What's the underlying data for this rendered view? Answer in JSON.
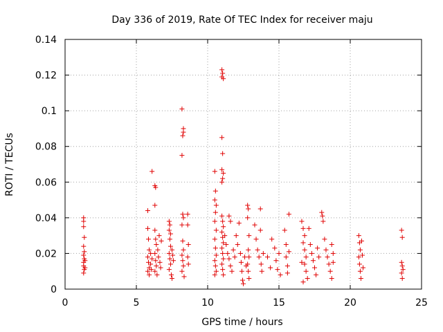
{
  "chart_data": {
    "type": "scatter",
    "title": "Day 336 of 2019, Rate Of TEC Index for receiver maju",
    "xlabel": "GPS time / hours",
    "ylabel": "ROTI / TECUs",
    "xlim": [
      0,
      25
    ],
    "ylim": [
      0,
      0.14
    ],
    "xticks": [
      0,
      5,
      10,
      15,
      20,
      25
    ],
    "yticks": [
      0,
      0.02,
      0.04,
      0.06,
      0.08,
      0.1,
      0.12,
      0.14
    ],
    "xtick_labels": [
      "0",
      "5",
      "10",
      "15",
      "20",
      "25"
    ],
    "ytick_labels": [
      "0",
      "0.02",
      "0.04",
      "0.06",
      "0.08",
      "0.1",
      "0.12",
      "0.14"
    ],
    "grid": true,
    "marker": "+",
    "color": "#e00000",
    "series": [
      {
        "name": "ROTI",
        "points": [
          [
            1.3,
            0.04
          ],
          [
            1.3,
            0.038
          ],
          [
            1.3,
            0.035
          ],
          [
            1.35,
            0.029
          ],
          [
            1.3,
            0.024
          ],
          [
            1.3,
            0.019
          ],
          [
            1.35,
            0.017
          ],
          [
            1.3,
            0.015
          ],
          [
            1.3,
            0.013
          ],
          [
            1.35,
            0.011
          ],
          [
            1.3,
            0.009
          ],
          [
            1.4,
            0.016
          ],
          [
            1.4,
            0.012
          ],
          [
            1.35,
            0.021
          ],
          [
            5.8,
            0.044
          ],
          [
            5.8,
            0.034
          ],
          [
            5.85,
            0.028
          ],
          [
            5.9,
            0.022
          ],
          [
            5.8,
            0.018
          ],
          [
            5.85,
            0.015
          ],
          [
            5.9,
            0.012
          ],
          [
            5.8,
            0.01
          ],
          [
            5.9,
            0.008
          ],
          [
            6.0,
            0.02
          ],
          [
            6.0,
            0.014
          ],
          [
            6.05,
            0.011
          ],
          [
            6.1,
            0.066
          ],
          [
            6.1,
            0.017
          ],
          [
            6.3,
            0.058
          ],
          [
            6.35,
            0.057
          ],
          [
            6.3,
            0.047
          ],
          [
            6.3,
            0.033
          ],
          [
            6.35,
            0.028
          ],
          [
            6.4,
            0.025
          ],
          [
            6.3,
            0.02
          ],
          [
            6.35,
            0.016
          ],
          [
            6.4,
            0.013
          ],
          [
            6.3,
            0.01
          ],
          [
            6.45,
            0.008
          ],
          [
            6.5,
            0.022
          ],
          [
            6.55,
            0.018
          ],
          [
            6.6,
            0.03
          ],
          [
            6.65,
            0.015
          ],
          [
            6.7,
            0.012
          ],
          [
            6.75,
            0.027
          ],
          [
            7.3,
            0.038
          ],
          [
            7.35,
            0.036
          ],
          [
            7.3,
            0.033
          ],
          [
            7.4,
            0.031
          ],
          [
            7.35,
            0.028
          ],
          [
            7.4,
            0.024
          ],
          [
            7.3,
            0.02
          ],
          [
            7.35,
            0.017
          ],
          [
            7.4,
            0.014
          ],
          [
            7.3,
            0.011
          ],
          [
            7.45,
            0.008
          ],
          [
            7.5,
            0.006
          ],
          [
            7.5,
            0.022
          ],
          [
            7.55,
            0.019
          ],
          [
            7.6,
            0.016
          ],
          [
            8.2,
            0.101
          ],
          [
            8.3,
            0.09
          ],
          [
            8.3,
            0.088
          ],
          [
            8.25,
            0.086
          ],
          [
            8.2,
            0.075
          ],
          [
            8.25,
            0.042
          ],
          [
            8.3,
            0.04
          ],
          [
            8.2,
            0.036
          ],
          [
            8.25,
            0.027
          ],
          [
            8.3,
            0.022
          ],
          [
            8.2,
            0.019
          ],
          [
            8.25,
            0.016
          ],
          [
            8.3,
            0.013
          ],
          [
            8.2,
            0.01
          ],
          [
            8.35,
            0.007
          ],
          [
            8.6,
            0.042
          ],
          [
            8.6,
            0.036
          ],
          [
            8.65,
            0.025
          ],
          [
            8.6,
            0.018
          ],
          [
            8.65,
            0.014
          ],
          [
            10.5,
            0.066
          ],
          [
            10.55,
            0.055
          ],
          [
            10.5,
            0.05
          ],
          [
            10.6,
            0.047
          ],
          [
            10.55,
            0.043
          ],
          [
            10.5,
            0.038
          ],
          [
            10.6,
            0.033
          ],
          [
            10.5,
            0.028
          ],
          [
            10.55,
            0.023
          ],
          [
            10.6,
            0.019
          ],
          [
            10.5,
            0.016
          ],
          [
            10.55,
            0.013
          ],
          [
            10.6,
            0.01
          ],
          [
            10.5,
            0.008
          ],
          [
            11.0,
            0.123
          ],
          [
            11.05,
            0.121
          ],
          [
            11.0,
            0.119
          ],
          [
            11.1,
            0.118
          ],
          [
            11.0,
            0.085
          ],
          [
            11.05,
            0.076
          ],
          [
            11.0,
            0.067
          ],
          [
            11.1,
            0.065
          ],
          [
            11.05,
            0.062
          ],
          [
            11.0,
            0.06
          ],
          [
            11.0,
            0.041
          ],
          [
            11.05,
            0.038
          ],
          [
            11.1,
            0.035
          ],
          [
            11.0,
            0.032
          ],
          [
            11.05,
            0.029
          ],
          [
            11.1,
            0.026
          ],
          [
            11.0,
            0.023
          ],
          [
            11.05,
            0.02
          ],
          [
            11.1,
            0.017
          ],
          [
            11.0,
            0.014
          ],
          [
            11.05,
            0.011
          ],
          [
            11.1,
            0.008
          ],
          [
            11.2,
            0.03
          ],
          [
            11.3,
            0.025
          ],
          [
            11.4,
            0.02
          ],
          [
            11.5,
            0.041
          ],
          [
            11.6,
            0.038
          ],
          [
            11.5,
            0.017
          ],
          [
            11.6,
            0.013
          ],
          [
            11.7,
            0.01
          ],
          [
            11.8,
            0.022
          ],
          [
            11.9,
            0.018
          ],
          [
            12.0,
            0.03
          ],
          [
            12.1,
            0.025
          ],
          [
            12.2,
            0.037
          ],
          [
            12.3,
            0.02
          ],
          [
            12.35,
            0.015
          ],
          [
            12.4,
            0.01
          ],
          [
            12.45,
            0.005
          ],
          [
            12.5,
            0.003
          ],
          [
            12.6,
            0.018
          ],
          [
            12.7,
            0.013
          ],
          [
            12.8,
            0.047
          ],
          [
            12.85,
            0.045
          ],
          [
            12.8,
            0.04
          ],
          [
            12.9,
            0.03
          ],
          [
            12.85,
            0.022
          ],
          [
            12.9,
            0.018
          ],
          [
            12.8,
            0.014
          ],
          [
            12.85,
            0.01
          ],
          [
            12.9,
            0.006
          ],
          [
            13.3,
            0.036
          ],
          [
            13.4,
            0.028
          ],
          [
            13.5,
            0.022
          ],
          [
            13.6,
            0.018
          ],
          [
            13.7,
            0.045
          ],
          [
            13.7,
            0.033
          ],
          [
            13.75,
            0.014
          ],
          [
            13.8,
            0.01
          ],
          [
            13.9,
            0.02
          ],
          [
            14.2,
            0.018
          ],
          [
            14.4,
            0.012
          ],
          [
            14.5,
            0.028
          ],
          [
            14.7,
            0.023
          ],
          [
            14.8,
            0.016
          ],
          [
            14.9,
            0.011
          ],
          [
            15.0,
            0.02
          ],
          [
            15.1,
            0.008
          ],
          [
            15.4,
            0.033
          ],
          [
            15.5,
            0.025
          ],
          [
            15.5,
            0.018
          ],
          [
            15.6,
            0.013
          ],
          [
            15.6,
            0.009
          ],
          [
            15.7,
            0.042
          ],
          [
            15.7,
            0.021
          ],
          [
            16.6,
            0.038
          ],
          [
            16.7,
            0.034
          ],
          [
            16.8,
            0.03
          ],
          [
            16.7,
            0.026
          ],
          [
            16.8,
            0.022
          ],
          [
            16.9,
            0.018
          ],
          [
            16.8,
            0.014
          ],
          [
            16.9,
            0.01
          ],
          [
            17.0,
            0.006
          ],
          [
            16.6,
            0.015
          ],
          [
            16.7,
            0.004
          ],
          [
            17.1,
            0.034
          ],
          [
            17.2,
            0.025
          ],
          [
            17.3,
            0.02
          ],
          [
            17.4,
            0.016
          ],
          [
            17.5,
            0.012
          ],
          [
            17.6,
            0.008
          ],
          [
            17.7,
            0.023
          ],
          [
            17.8,
            0.018
          ],
          [
            18.0,
            0.043
          ],
          [
            18.05,
            0.041
          ],
          [
            18.1,
            0.038
          ],
          [
            18.2,
            0.028
          ],
          [
            18.3,
            0.022
          ],
          [
            18.4,
            0.018
          ],
          [
            18.5,
            0.014
          ],
          [
            18.6,
            0.01
          ],
          [
            18.7,
            0.006
          ],
          [
            18.8,
            0.02
          ],
          [
            18.7,
            0.025
          ],
          [
            18.8,
            0.015
          ],
          [
            20.6,
            0.03
          ],
          [
            20.65,
            0.026
          ],
          [
            20.7,
            0.022
          ],
          [
            20.6,
            0.018
          ],
          [
            20.65,
            0.014
          ],
          [
            20.7,
            0.01
          ],
          [
            20.75,
            0.006
          ],
          [
            20.8,
            0.027
          ],
          [
            20.85,
            0.019
          ],
          [
            20.9,
            0.012
          ],
          [
            23.6,
            0.033
          ],
          [
            23.65,
            0.029
          ],
          [
            23.6,
            0.015
          ],
          [
            23.65,
            0.013
          ],
          [
            23.7,
            0.011
          ],
          [
            23.6,
            0.009
          ],
          [
            23.65,
            0.006
          ]
        ]
      }
    ]
  }
}
